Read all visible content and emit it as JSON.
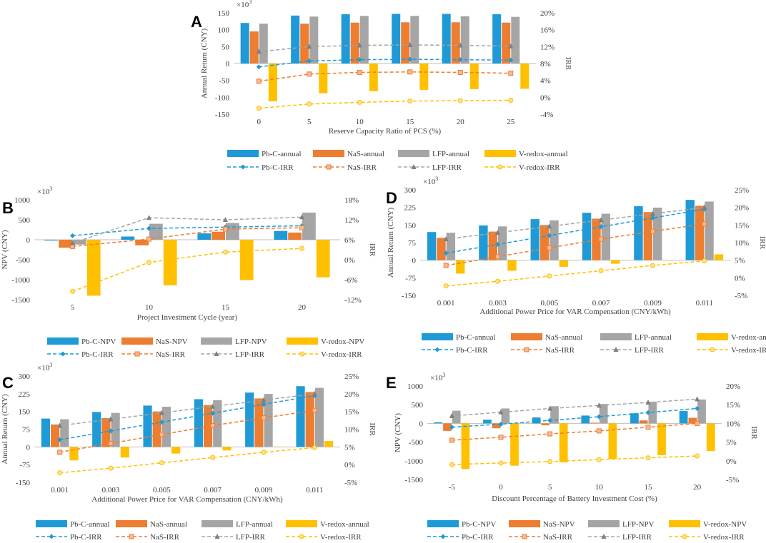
{
  "colors": {
    "Pb-C": "#1f9ad6",
    "NaS": "#ed7d31",
    "LFP": "#a5a5a5",
    "V-redox": "#ffc000",
    "axis": "#bfbfbf",
    "text": "#404040"
  },
  "chart_data": [
    {
      "panel": "A",
      "type": "bar",
      "categories": [
        "0",
        "5",
        "10",
        "15",
        "20",
        "25"
      ],
      "xlabel": "Reserve Capacity Ratio of PCS (%)",
      "ylabel": "Annual Return (CNY)",
      "y2label": "IRR",
      "scale_label": "×10³",
      "ylim": [
        -150,
        150
      ],
      "yticks": [
        -150,
        -100,
        -50,
        0,
        50,
        100,
        150
      ],
      "ytick_labels": [
        "-150",
        "-100",
        "-50",
        "0",
        "50",
        "100",
        "150"
      ],
      "y2lim": [
        -4,
        20
      ],
      "y2ticks": [
        -4,
        0,
        4,
        8,
        12,
        16,
        20
      ],
      "y2tick_labels": [
        "-4%",
        "0%",
        "4%",
        "8%",
        "12%",
        "16%",
        "20%"
      ],
      "series": [
        {
          "name": "Pb-C-annual",
          "color_key": "Pb-C",
          "values": [
            120,
            142,
            146,
            147,
            147,
            146
          ]
        },
        {
          "name": "NaS-annual",
          "color_key": "NaS",
          "values": [
            95,
            118,
            121,
            122,
            122,
            121
          ]
        },
        {
          "name": "LFP-annual",
          "color_key": "LFP",
          "values": [
            118,
            139,
            141,
            141,
            140,
            138
          ]
        },
        {
          "name": "V-redox-annual",
          "color_key": "V-redox",
          "values": [
            -112,
            -88,
            -82,
            -78,
            -76,
            -75
          ]
        }
      ],
      "lines": [
        {
          "name": "Pb-C-IRR",
          "color_key": "Pb-C",
          "marker": "diamond",
          "values": [
            7.2,
            8.6,
            8.9,
            9.0,
            8.9,
            8.8
          ]
        },
        {
          "name": "NaS-IRR",
          "color_key": "NaS",
          "marker": "square",
          "values": [
            3.8,
            5.5,
            5.9,
            6.0,
            5.9,
            5.7
          ]
        },
        {
          "name": "LFP-IRR",
          "color_key": "LFP",
          "marker": "triangle",
          "values": [
            10.8,
            12.0,
            12.3,
            12.4,
            12.3,
            12.1
          ]
        },
        {
          "name": "V-redox-IRR",
          "color_key": "V-redox",
          "marker": "circle",
          "values": [
            -2.6,
            -1.6,
            -1.2,
            -0.9,
            -0.8,
            -0.7
          ]
        }
      ],
      "legend": {
        "row1": [
          "Pb-C-annual",
          "NaS-annual",
          "LFP-annual",
          "V-redox-annual"
        ],
        "row2": [
          "Pb-C-IRR",
          "NaS-IRR",
          "LFP-IRR",
          "V-redox-IRR"
        ]
      }
    },
    {
      "panel": "B",
      "type": "bar",
      "categories": [
        "5",
        "10",
        "15",
        "20"
      ],
      "xlabel": "Project Investment Cycle (year)",
      "ylabel": "NPV (CNY)",
      "y2label": "IRR",
      "scale_label": "×10³",
      "ylim": [
        -1500,
        1000
      ],
      "yticks": [
        -1500,
        -1000,
        -500,
        0,
        500,
        1000
      ],
      "ytick_labels": [
        "-1500",
        "-1000",
        "-500",
        "0",
        "500",
        "1000"
      ],
      "y2lim": [
        -12,
        18
      ],
      "y2ticks": [
        -12,
        -6,
        0,
        6,
        12,
        18
      ],
      "y2tick_labels": [
        "-12%",
        "-6%",
        "0%",
        "6%",
        "12%",
        "18%"
      ],
      "series": [
        {
          "name": "Pb-C-NPV",
          "color_key": "Pb-C",
          "values": [
            -20,
            80,
            160,
            220
          ]
        },
        {
          "name": "NaS-NPV",
          "color_key": "NaS",
          "values": [
            -200,
            -140,
            200,
            180
          ]
        },
        {
          "name": "LFP-NPV",
          "color_key": "LFP",
          "values": [
            -120,
            400,
            420,
            680
          ]
        },
        {
          "name": "V-redox-NPV",
          "color_key": "V-redox",
          "values": [
            -1400,
            -1140,
            -1010,
            -940
          ]
        }
      ],
      "lines": [
        {
          "name": "Pb-C-IRR",
          "color_key": "Pb-C",
          "marker": "diamond",
          "values": [
            7.2,
            9.4,
            9.8,
            10.2
          ]
        },
        {
          "name": "NaS-IRR",
          "color_key": "NaS",
          "marker": "square",
          "values": [
            4.0,
            6.2,
            9.2,
            9.6
          ]
        },
        {
          "name": "LFP-IRR",
          "color_key": "LFP",
          "marker": "triangle",
          "values": [
            5.0,
            12.6,
            12.0,
            12.8
          ]
        },
        {
          "name": "V-redox-IRR",
          "color_key": "V-redox",
          "marker": "circle",
          "values": [
            -9.5,
            -0.8,
            2.3,
            3.4
          ]
        }
      ],
      "legend": {
        "row1": [
          "Pb-C-NPV",
          "NaS-NPV",
          "LFP-NPV",
          "V-redox-NPV"
        ],
        "row2": [
          "Pb-C-IRR",
          "NaS-IRR",
          "LFP-IRR",
          "V-redox-IRR"
        ]
      }
    },
    {
      "panel": "D",
      "type": "bar",
      "categories": [
        "0.001",
        "0.003",
        "0.005",
        "0.007",
        "0.009",
        "0.011"
      ],
      "xlabel": "Additional Power Price for VAR Compensation  (CNY/kWh)",
      "ylabel": "Annual Return (CNY)",
      "y2label": "IRR",
      "scale_label": "×10³",
      "ylim": [
        -150,
        300
      ],
      "yticks": [
        -150,
        -75,
        0,
        75,
        150,
        225,
        300
      ],
      "ytick_labels": [
        "-150",
        "-75",
        "0",
        "75",
        "150",
        "225",
        "300"
      ],
      "y2lim": [
        -5,
        25
      ],
      "y2ticks": [
        -5,
        0,
        5,
        10,
        15,
        20,
        25
      ],
      "y2tick_labels": [
        "-5%",
        "0%",
        "5%",
        "10%",
        "15%",
        "20%",
        "25%"
      ],
      "series": [
        {
          "name": "Pb-C-annual",
          "color_key": "Pb-C",
          "values": [
            120,
            148,
            175,
            202,
            230,
            257
          ]
        },
        {
          "name": "NaS-annual",
          "color_key": "NaS",
          "values": [
            95,
            122,
            150,
            177,
            205,
            232
          ]
        },
        {
          "name": "LFP-annual",
          "color_key": "LFP",
          "values": [
            117,
            144,
            170,
            198,
            224,
            250
          ]
        },
        {
          "name": "V-redox-annual",
          "color_key": "V-redox",
          "values": [
            -57,
            -45,
            -28,
            -15,
            0,
            25
          ]
        }
      ],
      "lines": [
        {
          "name": "Pb-C-IRR",
          "color_key": "Pb-C",
          "marker": "diamond",
          "values": [
            7.0,
            9.5,
            12.0,
            14.5,
            17.0,
            19.5
          ]
        },
        {
          "name": "NaS-IRR",
          "color_key": "NaS",
          "marker": "square",
          "values": [
            3.5,
            6.0,
            8.5,
            11.0,
            13.2,
            15.3
          ]
        },
        {
          "name": "LFP-IRR",
          "color_key": "LFP",
          "marker": "triangle",
          "values": [
            11.0,
            12.8,
            14.6,
            16.4,
            18.2,
            20.0
          ]
        },
        {
          "name": "V-redox-IRR",
          "color_key": "V-redox",
          "marker": "circle",
          "values": [
            -2.3,
            -1.0,
            0.5,
            2.0,
            3.5,
            4.8
          ]
        }
      ],
      "legend": {
        "row1": [
          "Pb-C-annual",
          "NaS-annual",
          "LFP-annual",
          "V-redox-annual"
        ],
        "row2": [
          "Pb-C-IRR",
          "NaS-IRR",
          "LFP-IRR",
          "V-redox-IRR"
        ]
      }
    },
    {
      "panel": "C",
      "type": "bar",
      "categories": [
        "0.001",
        "0.003",
        "0.005",
        "0.007",
        "0.009",
        "0.011"
      ],
      "xlabel": "Additional Power Price for VAR Compensation  (CNY/kWh)",
      "ylabel": "Annual Return (CNY)",
      "y2label": "IRR",
      "scale_label": "×10³",
      "ylim": [
        -150,
        300
      ],
      "yticks": [
        -150,
        -75,
        0,
        75,
        150,
        225,
        300
      ],
      "ytick_labels": [
        "-150",
        "-75",
        "0",
        "75",
        "150",
        "225",
        "300"
      ],
      "y2lim": [
        -5,
        25
      ],
      "y2ticks": [
        -5,
        0,
        5,
        10,
        15,
        20,
        25
      ],
      "y2tick_labels": [
        "-5%",
        "0%",
        "5%",
        "10%",
        "15%",
        "20%",
        "25%"
      ],
      "series": [
        {
          "name": "Pb-C-annual",
          "color_key": "Pb-C",
          "values": [
            120,
            148,
            175,
            202,
            230,
            257
          ]
        },
        {
          "name": "NaS-annual",
          "color_key": "NaS",
          "values": [
            95,
            122,
            150,
            177,
            205,
            232
          ]
        },
        {
          "name": "LFP-annual",
          "color_key": "LFP",
          "values": [
            117,
            144,
            170,
            198,
            224,
            250
          ]
        },
        {
          "name": "V-redox-annual",
          "color_key": "V-redox",
          "values": [
            -57,
            -45,
            -28,
            -15,
            0,
            25
          ]
        }
      ],
      "lines": [
        {
          "name": "Pb-C-IRR",
          "color_key": "Pb-C",
          "marker": "diamond",
          "values": [
            7.0,
            9.5,
            12.0,
            14.5,
            17.0,
            19.5
          ]
        },
        {
          "name": "NaS-IRR",
          "color_key": "NaS",
          "marker": "square",
          "values": [
            3.5,
            6.0,
            8.5,
            11.0,
            13.2,
            15.3
          ]
        },
        {
          "name": "LFP-IRR",
          "color_key": "LFP",
          "marker": "triangle",
          "values": [
            11.0,
            12.8,
            14.6,
            16.4,
            18.2,
            20.0
          ]
        },
        {
          "name": "V-redox-IRR",
          "color_key": "V-redox",
          "marker": "circle",
          "values": [
            -2.3,
            -1.0,
            0.5,
            2.0,
            3.5,
            4.8
          ]
        }
      ],
      "legend": {
        "row1": [
          "Pb-C-annual",
          "NaS-annual",
          "LFP-annual",
          "V-redox-annual"
        ],
        "row2": [
          "Pb-C-IRR",
          "NaS-IRR",
          "LFP-IRR",
          "V-redox-IRR"
        ]
      }
    },
    {
      "panel": "E",
      "type": "bar",
      "categories": [
        "-5",
        "0",
        "5",
        "10",
        "15",
        "20"
      ],
      "xlabel": "Discount Percentage of Battery Investment Cost (%)",
      "ylabel": "NPV (CNY)",
      "y2label": "IRR",
      "scale_label": "×10³",
      "ylim": [
        -1500,
        1000
      ],
      "yticks": [
        -1500,
        -1000,
        -500,
        0,
        500,
        1000
      ],
      "ytick_labels": [
        "-1500",
        "-1000",
        "-500",
        "0",
        "500",
        "1000"
      ],
      "y2lim": [
        -5,
        20
      ],
      "y2ticks": [
        -5,
        0,
        5,
        10,
        15,
        20
      ],
      "y2tick_labels": [
        "-5%",
        "0%",
        "5%",
        "10%",
        "15%",
        "20%"
      ],
      "series": [
        {
          "name": "Pb-C-NPV",
          "color_key": "Pb-C",
          "values": [
            30,
            100,
            160,
            210,
            270,
            330
          ]
        },
        {
          "name": "NaS-NPV",
          "color_key": "NaS",
          "values": [
            -200,
            -130,
            -50,
            20,
            80,
            150
          ]
        },
        {
          "name": "LFP-NPV",
          "color_key": "LFP",
          "values": [
            340,
            400,
            460,
            520,
            580,
            640
          ]
        },
        {
          "name": "V-redox-NPV",
          "color_key": "V-redox",
          "values": [
            -1220,
            -1130,
            -1040,
            -950,
            -850,
            -740
          ]
        }
      ],
      "lines": [
        {
          "name": "Pb-C-IRR",
          "color_key": "Pb-C",
          "marker": "diamond",
          "values": [
            9.0,
            9.8,
            10.8,
            11.8,
            12.9,
            14.0
          ]
        },
        {
          "name": "NaS-IRR",
          "color_key": "NaS",
          "marker": "square",
          "values": [
            5.5,
            6.3,
            7.2,
            8.0,
            9.0,
            10.0
          ]
        },
        {
          "name": "LFP-IRR",
          "color_key": "LFP",
          "marker": "triangle",
          "values": [
            12.0,
            13.0,
            14.0,
            14.8,
            15.6,
            16.5
          ]
        },
        {
          "name": "V-redox-IRR",
          "color_key": "V-redox",
          "marker": "circle",
          "values": [
            -1.0,
            -0.6,
            -0.2,
            0.3,
            0.8,
            1.3
          ]
        }
      ],
      "legend": {
        "row1": [
          "Pb-C-NPV",
          "NaS-NPV",
          "LFP-NPV",
          "V-redox-NPV"
        ],
        "row2": [
          "Pb-C-IRR",
          "NaS-IRR",
          "LFP-IRR",
          "V-redox-IRR"
        ]
      }
    }
  ]
}
